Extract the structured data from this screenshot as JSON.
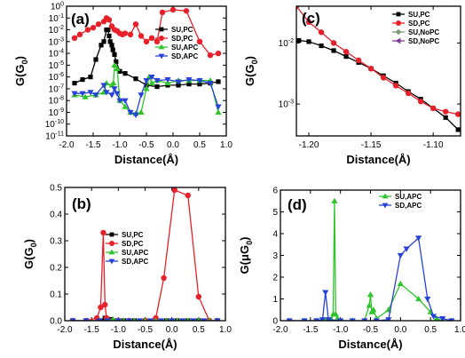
{
  "chart_data": [
    {
      "panel": "(a)",
      "type": "line",
      "xlabel": "Distance(Å)",
      "ylabel": "G(G0)",
      "xlim": [
        -2.0,
        1.0
      ],
      "ylim": [
        1e-11,
        1
      ],
      "yscale": "log",
      "xticks": [
        "-2.0",
        "-1.5",
        "-1.0",
        "-0.5",
        "0.0",
        "0.5",
        "1.0"
      ],
      "yticks": [
        "10-11",
        "10-10",
        "10-9",
        "10-8",
        "10-7",
        "10-6",
        "10-5",
        "10-4",
        "10-3",
        "10-2",
        "10-1",
        "100"
      ],
      "legend_position": "top-right",
      "series": [
        {
          "name": "SU,PC",
          "color": "#000000",
          "marker": "square",
          "x": [
            -1.85,
            -1.7,
            -1.55,
            -1.45,
            -1.35,
            -1.3,
            -1.25,
            -1.22,
            -1.2,
            -1.18,
            -1.15,
            -1.13,
            -1.1,
            -1.07,
            -1.0,
            -0.9,
            -0.7,
            -0.5,
            -0.3,
            -0.1,
            0.1,
            0.3,
            0.5,
            0.7,
            0.85
          ],
          "y": [
            3e-07,
            6e-07,
            1e-06,
            3e-05,
            0.0005,
            0.001,
            0.01,
            0.01,
            0.003,
            0.001,
            0.0005,
            0.0002,
            8e-05,
            2e-05,
            3e-06,
            2e-06,
            7e-07,
            2e-07,
            1.5e-07,
            2e-07,
            2e-07,
            2.5e-07,
            2.5e-07,
            3e-07,
            4e-07
          ]
        },
        {
          "name": "SD,PC",
          "color": "#e8202a",
          "marker": "circle",
          "x": [
            -1.85,
            -1.75,
            -1.6,
            -1.5,
            -1.4,
            -1.3,
            -1.25,
            -1.2,
            -1.15,
            -1.1,
            -1.05,
            -1.0,
            -0.95,
            -0.9,
            -0.8,
            -0.7,
            -0.6,
            -0.5,
            -0.4,
            -0.3,
            -0.2,
            0.0,
            0.25,
            0.5,
            0.7,
            0.85
          ],
          "y": [
            0.002,
            0.004,
            0.01,
            0.015,
            0.03,
            0.05,
            0.1,
            0.07,
            0.02,
            0.01,
            0.008,
            0.005,
            0.004,
            0.005,
            0.004,
            0.03,
            0.003,
            0.001,
            0.002,
            0.001,
            0.3,
            0.5,
            0.4,
            0.001,
            7e-05,
            0.0001
          ]
        },
        {
          "name": "SU,APC",
          "color": "#2ec52b",
          "marker": "triangle-up",
          "x": [
            -1.85,
            -1.65,
            -1.45,
            -1.3,
            -1.25,
            -1.15,
            -1.12,
            -1.1,
            -1.05,
            -1.0,
            -0.9,
            -0.8,
            -0.7,
            -0.6,
            -0.5,
            -0.45,
            -0.4,
            -0.3,
            -0.1,
            0.1,
            0.3,
            0.5,
            0.7,
            0.85
          ],
          "y": [
            3e-08,
            2e-08,
            3e-08,
            5e-08,
            3e-07,
            2e-07,
            3e-07,
            1e-05,
            5e-06,
            1e-08,
            3e-09,
            1e-09,
            8e-10,
            1e-09,
            1e-07,
            1e-06,
            3e-07,
            5e-07,
            3e-07,
            5e-07,
            5e-07,
            5e-07,
            5e-07,
            1e-09
          ]
        },
        {
          "name": "SD,APC",
          "color": "#2741d9",
          "marker": "triangle-down",
          "x": [
            -1.85,
            -1.7,
            -1.55,
            -1.45,
            -1.3,
            -1.25,
            -1.15,
            -1.1,
            -1.05,
            -1.0,
            -0.9,
            -0.8,
            -0.7,
            -0.6,
            -0.5,
            -0.4,
            -0.3,
            -0.1,
            0.1,
            0.3,
            0.5,
            0.7,
            0.85
          ],
          "y": [
            4e-08,
            4e-08,
            5e-08,
            3e-08,
            2e-07,
            5e-08,
            3e-08,
            1e-07,
            4e-08,
            1e-08,
            1e-08,
            1e-09,
            6e-10,
            3e-08,
            5e-07,
            1e-06,
            5e-07,
            6e-07,
            4e-07,
            6e-07,
            5e-07,
            3e-07,
            3e-09
          ]
        }
      ]
    },
    {
      "panel": "(c)",
      "type": "line",
      "xlabel": "Distance(Å)",
      "ylabel": "G(G0)",
      "xlim": [
        -1.21,
        -1.078
      ],
      "ylim": [
        0.0003,
        0.04
      ],
      "yscale": "log",
      "xticks": [
        "-1.20",
        "-1.15",
        "-1.10"
      ],
      "yticks": [
        "10-3",
        "10-2"
      ],
      "legend_position": "top-right",
      "series": [
        {
          "name": "SU,PC",
          "color": "#000000",
          "marker": "square",
          "x": [
            -1.208,
            -1.2,
            -1.19,
            -1.18,
            -1.17,
            -1.16,
            -1.15,
            -1.14,
            -1.13,
            -1.12,
            -1.11,
            -1.1,
            -1.09,
            -1.08
          ],
          "y": [
            0.011,
            0.0105,
            0.009,
            0.0075,
            0.006,
            0.0048,
            0.0038,
            0.0029,
            0.0022,
            0.0016,
            0.0012,
            0.00085,
            0.0006,
            0.00038
          ]
        },
        {
          "name": "SD,PC",
          "color": "#e8202a",
          "marker": "circle",
          "x": [
            -1.21,
            -1.2,
            -1.19,
            -1.18,
            -1.17,
            -1.16,
            -1.15,
            -1.14,
            -1.13,
            -1.12,
            -1.11,
            -1.1,
            -1.09,
            -1.08
          ],
          "y": [
            0.04,
            0.022,
            0.015,
            0.01,
            0.0072,
            0.0052,
            0.0038,
            0.0027,
            0.002,
            0.0015,
            0.0011,
            0.00085,
            0.00075,
            0.00068
          ]
        },
        {
          "name": "SU,NoPC",
          "color": "#7a9c78",
          "marker": "diamond",
          "x": [],
          "y": []
        },
        {
          "name": "SD,NoPC",
          "color": "#7b3b9b",
          "marker": "triangle-left",
          "x": [],
          "y": []
        }
      ]
    },
    {
      "panel": "(b)",
      "type": "line",
      "xlabel": "Distance(Å)",
      "ylabel": "G(G0)",
      "xlim": [
        -2.0,
        1.0
      ],
      "ylim": [
        0,
        0.5
      ],
      "yscale": "linear",
      "xticks": [
        "-2.0",
        "-1.5",
        "-1.0",
        "-0.5",
        "0.0",
        "0.5",
        "1.0"
      ],
      "yticks": [
        "0.0",
        "0.1",
        "0.2",
        "0.3",
        "0.4",
        "0.5"
      ],
      "legend_position": "top-left",
      "series": [
        {
          "name": "SU,PC",
          "color": "#000000",
          "marker": "square",
          "x": [
            -1.85,
            -1.6,
            -1.35,
            -1.25,
            -1.15,
            -1.05,
            -0.9,
            -0.7,
            -0.5,
            -0.3,
            -0.1,
            0.1,
            0.3,
            0.5,
            0.7,
            0.85
          ],
          "y": [
            0,
            0,
            0,
            0.01,
            0.005,
            0,
            0,
            0,
            0,
            0,
            0,
            0,
            0,
            0,
            0,
            0
          ]
        },
        {
          "name": "SD,PC",
          "color": "#e8202a",
          "marker": "circle",
          "x": [
            -1.85,
            -1.6,
            -1.4,
            -1.33,
            -1.28,
            -1.25,
            -1.22,
            -1.18,
            -1.1,
            -1.0,
            -0.8,
            -0.5,
            -0.3,
            -0.15,
            0.05,
            0.3,
            0.5,
            0.7,
            0.85
          ],
          "y": [
            0,
            0,
            0.01,
            0.05,
            0.33,
            0.06,
            0.01,
            0,
            0,
            0,
            0,
            0,
            0.01,
            0.16,
            0.49,
            0.47,
            0.09,
            0,
            0
          ]
        },
        {
          "name": "SU,APC",
          "color": "#2ec52b",
          "marker": "triangle-up",
          "x": [
            -1.85,
            -1.6,
            -1.35,
            -1.2,
            -1.1,
            -0.9,
            -0.7,
            -0.5,
            -0.3,
            -0.1,
            0.1,
            0.3,
            0.5,
            0.7,
            0.85
          ],
          "y": [
            0,
            0,
            0,
            0,
            0.005,
            0,
            0,
            0,
            0,
            0,
            0,
            0,
            0,
            0,
            0
          ]
        },
        {
          "name": "SD,APC",
          "color": "#2741d9",
          "marker": "triangle-down",
          "x": [
            -1.85,
            -1.6,
            -1.35,
            -1.2,
            -1.0,
            -0.8,
            -0.6,
            -0.4,
            -0.2,
            0.0,
            0.2,
            0.4,
            0.6,
            0.85
          ],
          "y": [
            0,
            0,
            0,
            0,
            0,
            0,
            0,
            0,
            0,
            0,
            0,
            0,
            0,
            0
          ]
        }
      ]
    },
    {
      "panel": "(d)",
      "type": "line",
      "xlabel": "Distance(Å)",
      "ylabel": "G(μG0)",
      "xlim": [
        -2.0,
        1.0
      ],
      "ylim": [
        0,
        6
      ],
      "yscale": "linear",
      "xticks": [
        "-2.0",
        "-1.5",
        "-1.0",
        "-0.5",
        "0.0",
        "0.5",
        "1.0"
      ],
      "yticks": [
        "0",
        "1",
        "2",
        "3",
        "4",
        "5",
        "6"
      ],
      "legend_position": "top-right",
      "series": [
        {
          "name": "SU,APC",
          "color": "#2ec52b",
          "marker": "triangle-up",
          "x": [
            -1.85,
            -1.6,
            -1.4,
            -1.25,
            -1.15,
            -1.12,
            -1.1,
            -1.08,
            -1.05,
            -1.0,
            -0.8,
            -0.6,
            -0.52,
            -0.5,
            -0.48,
            -0.45,
            -0.4,
            -0.2,
            0.0,
            0.3,
            0.5,
            0.6,
            0.7,
            0.85
          ],
          "y": [
            0,
            0,
            0,
            0,
            0.05,
            0.3,
            5.5,
            0.3,
            0.1,
            0,
            0,
            0,
            0.7,
            1.2,
            0.4,
            0.5,
            0.1,
            0.5,
            1.7,
            1.0,
            0.4,
            0.1,
            0,
            0
          ]
        },
        {
          "name": "SD,APC",
          "color": "#2741d9",
          "marker": "triangle-down",
          "x": [
            -1.85,
            -1.6,
            -1.4,
            -1.3,
            -1.25,
            -1.2,
            -1.0,
            -0.8,
            -0.6,
            -0.4,
            -0.2,
            0.0,
            0.1,
            0.3,
            0.45,
            0.55,
            0.7,
            0.85
          ],
          "y": [
            0,
            0,
            0,
            0.05,
            1.3,
            0.05,
            0,
            0,
            0,
            0,
            0.05,
            3.0,
            3.3,
            3.8,
            1.0,
            0.2,
            0.1,
            0
          ]
        }
      ]
    }
  ]
}
